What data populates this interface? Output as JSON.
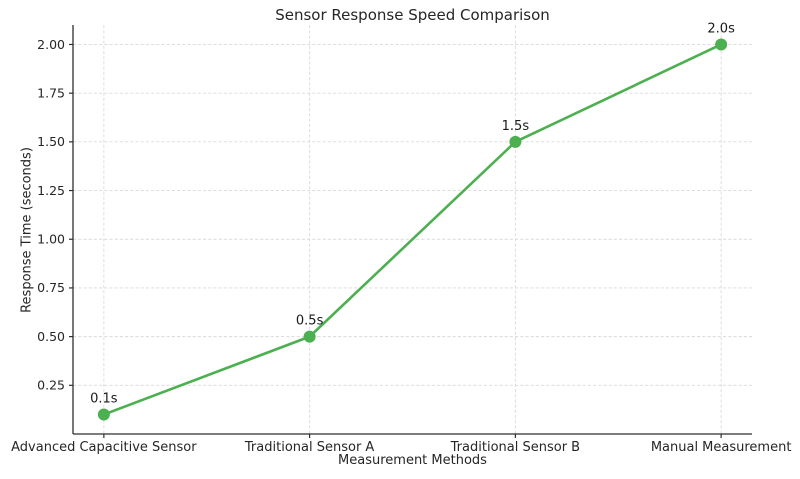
{
  "chart_data": {
    "type": "line",
    "title": "Sensor Response Speed Comparison",
    "xlabel": "Measurement Methods",
    "ylabel": "Response Time (seconds)",
    "categories": [
      "Advanced Capacitive Sensor",
      "Traditional Sensor A",
      "Traditional Sensor B",
      "Manual Measurement"
    ],
    "values": [
      0.1,
      0.5,
      1.5,
      2.0
    ],
    "point_labels": [
      "0.1s",
      "0.5s",
      "1.5s",
      "2.0s"
    ],
    "ytick_labels": [
      "0.25",
      "0.50",
      "0.75",
      "1.00",
      "1.25",
      "1.50",
      "1.75",
      "2.00"
    ],
    "yticks": [
      0.25,
      0.5,
      0.75,
      1.0,
      1.25,
      1.5,
      1.75,
      2.0
    ],
    "ylim": [
      0,
      2.1
    ],
    "grid": true,
    "grid_style": "dashed",
    "legend": null,
    "colors": {
      "line": "#4CAF50",
      "marker": "#4CAF50",
      "grid": "#dadada",
      "spine": "#2e2e2e",
      "text": "#262626",
      "background": "#ffffff"
    }
  }
}
